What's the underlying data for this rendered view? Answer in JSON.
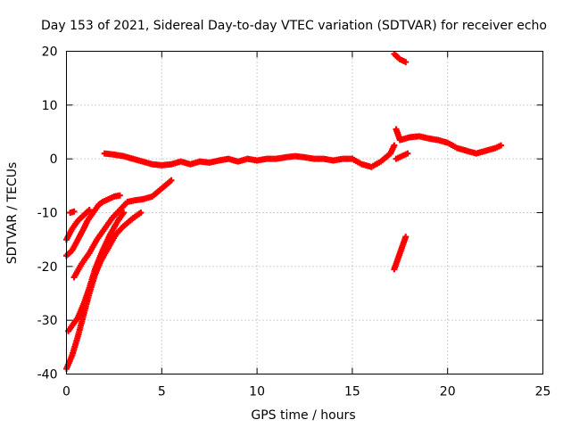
{
  "chart_data": {
    "type": "scatter",
    "title": "Day 153 of 2021, Sidereal Day-to-day VTEC variation (SDTVAR) for receiver echo",
    "xlabel": "GPS time / hours",
    "ylabel": "SDTVAR / TECUs",
    "xlim": [
      0,
      25
    ],
    "ylim": [
      -40,
      20
    ],
    "xticks": [
      0,
      5,
      10,
      15,
      20,
      25
    ],
    "yticks": [
      -40,
      -30,
      -20,
      -10,
      0,
      10,
      20
    ],
    "grid": true,
    "series_color": "#ff0000",
    "series": [
      {
        "name": "track-1",
        "points": [
          [
            0.0,
            -39.0
          ],
          [
            0.3,
            -36.5
          ],
          [
            0.6,
            -33.0
          ],
          [
            0.9,
            -29.0
          ],
          [
            1.2,
            -25.0
          ],
          [
            1.5,
            -21.5
          ],
          [
            1.8,
            -19.0
          ],
          [
            2.2,
            -16.5
          ],
          [
            2.6,
            -14.0
          ],
          [
            3.0,
            -12.5
          ],
          [
            3.5,
            -11.0
          ],
          [
            3.9,
            -10.0
          ]
        ]
      },
      {
        "name": "track-2",
        "points": [
          [
            0.1,
            -32.0
          ],
          [
            0.3,
            -31.0
          ],
          [
            0.6,
            -29.5
          ],
          [
            0.9,
            -27.0
          ],
          [
            1.2,
            -24.0
          ],
          [
            1.5,
            -20.5
          ],
          [
            1.9,
            -17.0
          ],
          [
            2.3,
            -14.0
          ],
          [
            2.7,
            -11.5
          ],
          [
            3.0,
            -10.0
          ]
        ]
      },
      {
        "name": "track-3",
        "points": [
          [
            0.4,
            -22.0
          ],
          [
            0.8,
            -19.5
          ],
          [
            1.2,
            -17.5
          ],
          [
            1.6,
            -15.0
          ],
          [
            2.0,
            -13.0
          ],
          [
            2.4,
            -11.0
          ],
          [
            2.8,
            -9.5
          ],
          [
            3.2,
            -8.0
          ],
          [
            3.6,
            -7.7
          ],
          [
            4.0,
            -7.5
          ],
          [
            4.5,
            -7.0
          ],
          [
            5.0,
            -5.5
          ],
          [
            5.5,
            -4.0
          ]
        ]
      },
      {
        "name": "track-4",
        "points": [
          [
            0.0,
            -18.0
          ],
          [
            0.3,
            -17.0
          ],
          [
            0.6,
            -15.0
          ],
          [
            0.9,
            -13.0
          ],
          [
            1.1,
            -11.5
          ],
          [
            1.3,
            -10.5
          ],
          [
            1.5,
            -9.5
          ],
          [
            1.7,
            -8.5
          ],
          [
            1.9,
            -8.0
          ],
          [
            2.2,
            -7.5
          ],
          [
            2.5,
            -7.0
          ],
          [
            2.8,
            -6.8
          ]
        ]
      },
      {
        "name": "track-5",
        "points": [
          [
            0.0,
            -15.0
          ],
          [
            0.3,
            -13.0
          ],
          [
            0.6,
            -11.5
          ],
          [
            0.9,
            -10.5
          ],
          [
            1.2,
            -9.5
          ]
        ]
      },
      {
        "name": "track-6",
        "points": [
          [
            0.2,
            -10.0
          ],
          [
            0.4,
            -9.8
          ]
        ]
      },
      {
        "name": "track-7",
        "points": [
          [
            2.0,
            1.0
          ],
          [
            2.5,
            0.8
          ],
          [
            3.0,
            0.5
          ],
          [
            3.5,
            0.0
          ],
          [
            4.0,
            -0.5
          ],
          [
            4.5,
            -1.0
          ],
          [
            5.0,
            -1.2
          ],
          [
            5.5,
            -1.0
          ],
          [
            6.0,
            -0.5
          ],
          [
            6.5,
            -1.0
          ],
          [
            7.0,
            -0.5
          ],
          [
            7.5,
            -0.7
          ],
          [
            8.0,
            -0.3
          ],
          [
            8.5,
            0.0
          ],
          [
            9.0,
            -0.5
          ],
          [
            9.5,
            0.0
          ],
          [
            10.0,
            -0.3
          ],
          [
            10.5,
            0.0
          ],
          [
            11.0,
            0.0
          ],
          [
            11.5,
            0.3
          ],
          [
            12.0,
            0.5
          ],
          [
            12.5,
            0.3
          ],
          [
            13.0,
            0.0
          ],
          [
            13.5,
            0.0
          ],
          [
            14.0,
            -0.3
          ],
          [
            14.5,
            0.0
          ],
          [
            15.0,
            0.0
          ],
          [
            15.5,
            -1.0
          ],
          [
            16.0,
            -1.5
          ],
          [
            16.5,
            -0.5
          ],
          [
            17.0,
            1.0
          ],
          [
            17.2,
            2.5
          ]
        ]
      },
      {
        "name": "track-8",
        "points": [
          [
            17.3,
            5.5
          ],
          [
            17.5,
            3.5
          ],
          [
            18.0,
            4.0
          ],
          [
            18.5,
            4.2
          ],
          [
            19.0,
            3.8
          ],
          [
            19.5,
            3.5
          ],
          [
            20.0,
            3.0
          ],
          [
            20.5,
            2.0
          ],
          [
            21.0,
            1.5
          ],
          [
            21.5,
            1.0
          ],
          [
            22.0,
            1.5
          ],
          [
            22.5,
            2.0
          ],
          [
            22.8,
            2.5
          ]
        ]
      },
      {
        "name": "track-9",
        "points": [
          [
            17.2,
            19.5
          ],
          [
            17.5,
            18.5
          ],
          [
            17.8,
            18.0
          ]
        ]
      },
      {
        "name": "track-10",
        "points": [
          [
            17.2,
            -20.5
          ],
          [
            17.4,
            -18.5
          ],
          [
            17.6,
            -16.5
          ],
          [
            17.8,
            -14.5
          ]
        ]
      },
      {
        "name": "track-11",
        "points": [
          [
            17.3,
            0.0
          ],
          [
            17.6,
            0.5
          ],
          [
            17.9,
            1.0
          ]
        ]
      }
    ]
  }
}
